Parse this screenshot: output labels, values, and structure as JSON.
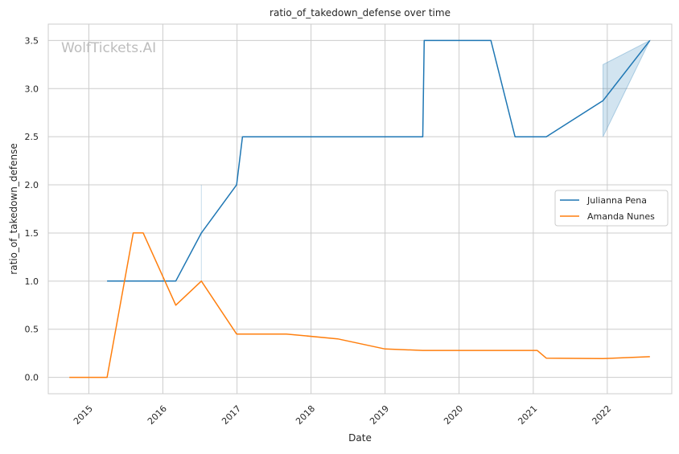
{
  "chart_data": {
    "type": "line",
    "title": "ratio_of_takedown_defense over time",
    "xlabel": "Date",
    "ylabel": "ratio_of_takedown_defense",
    "watermark": "WolfTickets.AI",
    "x_ticks": [
      "2015",
      "2016",
      "2017",
      "2018",
      "2019",
      "2020",
      "2021",
      "2022"
    ],
    "y_ticks": [
      "0.0",
      "0.5",
      "1.0",
      "1.5",
      "2.0",
      "2.5",
      "3.0",
      "3.5"
    ],
    "xlim": [
      "2014-06-15",
      "2022-11-15"
    ],
    "ylim": [
      -0.17,
      3.67
    ],
    "grid": true,
    "legend_position": "center-right",
    "series": [
      {
        "name": "Julianna Pena",
        "color": "#1f77b4",
        "points": [
          [
            "2015-04-01",
            1.0
          ],
          [
            "2016-03-05",
            1.0
          ],
          [
            "2016-07-09",
            1.5
          ],
          [
            "2016-12-30",
            2.0
          ],
          [
            "2017-01-28",
            2.5
          ],
          [
            "2019-07-06",
            2.5
          ],
          [
            "2019-07-13",
            3.5
          ],
          [
            "2020-06-06",
            3.5
          ],
          [
            "2020-10-03",
            2.5
          ],
          [
            "2021-03-06",
            2.5
          ],
          [
            "2021-12-11",
            2.875
          ],
          [
            "2022-07-30",
            3.5
          ]
        ],
        "bands": [
          {
            "x": "2016-07-09",
            "low": 1.0,
            "high": 2.0
          },
          {
            "x": "2021-12-11",
            "low": 2.5,
            "high": 3.25
          },
          {
            "x": "2022-07-30",
            "low": 3.5,
            "high": 3.5
          }
        ]
      },
      {
        "name": "Amanda Nunes",
        "color": "#ff7f0e",
        "points": [
          [
            "2014-09-27",
            0.0
          ],
          [
            "2015-04-01",
            0.0
          ],
          [
            "2015-08-08",
            1.5
          ],
          [
            "2015-09-26",
            1.5
          ],
          [
            "2016-03-05",
            0.75
          ],
          [
            "2016-07-09",
            1.0
          ],
          [
            "2016-12-30",
            0.45
          ],
          [
            "2017-09-01",
            0.45
          ],
          [
            "2018-05-12",
            0.4
          ],
          [
            "2019-01-01",
            0.295
          ],
          [
            "2019-07-06",
            0.28
          ],
          [
            "2021-01-20",
            0.28
          ],
          [
            "2021-03-06",
            0.2
          ],
          [
            "2021-12-11",
            0.195
          ],
          [
            "2022-07-30",
            0.215
          ]
        ]
      }
    ]
  }
}
